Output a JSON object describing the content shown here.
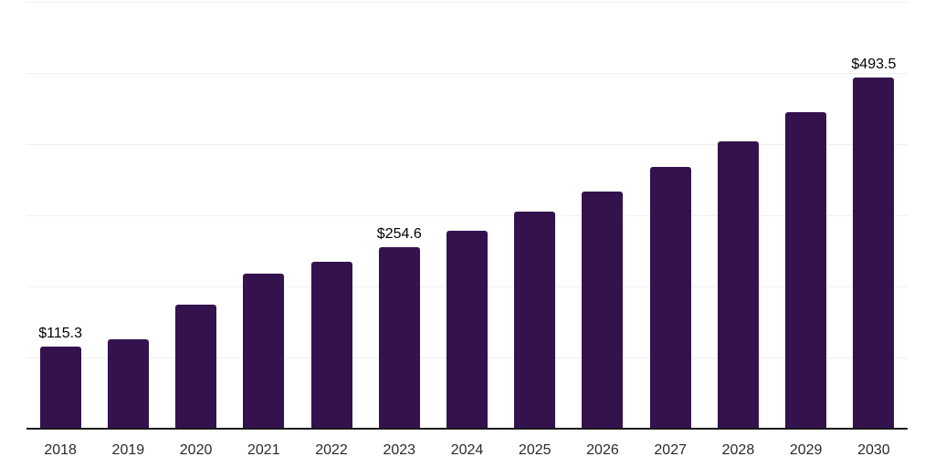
{
  "chart_data": {
    "type": "bar",
    "title": "",
    "xlabel": "",
    "ylabel": "",
    "categories": [
      "2018",
      "2019",
      "2020",
      "2021",
      "2022",
      "2023",
      "2024",
      "2025",
      "2026",
      "2027",
      "2028",
      "2029",
      "2030"
    ],
    "values": [
      115.3,
      125.8,
      173.9,
      217.4,
      234.4,
      254.6,
      278.5,
      304.9,
      333.4,
      367.4,
      404.2,
      445.5,
      493.5
    ],
    "data_labels": [
      "$115.3",
      null,
      null,
      null,
      null,
      "$254.6",
      null,
      null,
      null,
      null,
      null,
      null,
      "$493.5"
    ],
    "value_prefix": "$",
    "ylim": [
      0,
      600
    ],
    "grid_step": 100,
    "grid": true,
    "legend": false,
    "colors": {
      "bar": "#33124d",
      "grid_line": "#f0f0f0",
      "axis_line": "#1a1a1a",
      "tick_label": "#2b2b2b",
      "data_label": "#000000",
      "background": "#ffffff"
    }
  }
}
